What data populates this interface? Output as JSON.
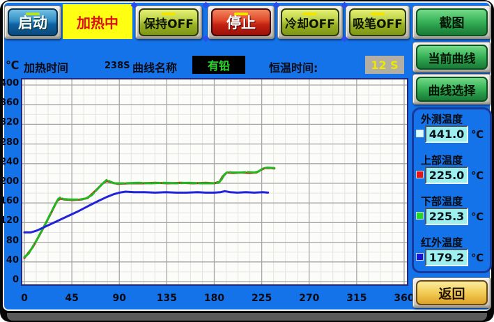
{
  "top_bar": {
    "buttons": [
      {
        "label": "启动",
        "style": "blue",
        "led": "#b4e422"
      },
      {
        "label": "加热中",
        "style": "yellow-status"
      },
      {
        "label": "保持OFF",
        "style": "olive",
        "led": "#f2e600"
      },
      {
        "label": "停止",
        "style": "red",
        "led": "#f2e600"
      },
      {
        "label": "冷却OFF",
        "style": "olive",
        "led": "#f2e600"
      },
      {
        "label": "吸笔OFF",
        "style": "olive",
        "led": "#f2e600"
      },
      {
        "label": "截图",
        "style": "green"
      }
    ]
  },
  "header": {
    "y_axis_unit": "℃",
    "heat_time_label": "加热时间",
    "heat_time_value": "238S",
    "curve_name_label": "曲线名称",
    "curve_name_value": "有铅",
    "hold_time_label": "恒温时间:",
    "hold_time_value": "12 S"
  },
  "right_panel": {
    "screenshot_button": "截图",
    "current_curve_button": "当前曲线",
    "curve_select_button": "曲线选择",
    "back_button": "返回",
    "sensors": [
      {
        "label": "外测温度",
        "value": "441.0",
        "unit": "℃",
        "color": "#d8ffff"
      },
      {
        "label": "上部温度",
        "value": "225.0",
        "unit": "℃",
        "color": "#e81414"
      },
      {
        "label": "下部温度",
        "value": "225.3",
        "unit": "℃",
        "color": "#22d822"
      },
      {
        "label": "红外温度",
        "value": "179.2",
        "unit": "℃",
        "color": "#1414d8"
      }
    ]
  },
  "colors": {
    "screen_bg": "#1473e8",
    "plot_bg": "#fcfcf8",
    "grid_minor": "#e4e4e4",
    "grid_major": "#a6a6a6",
    "status_yellow": "#ffff12",
    "status_text_red": "#e01010"
  },
  "chart_data": {
    "type": "line",
    "x_unit": "s",
    "y_unit": "℃",
    "xlim": [
      0,
      360
    ],
    "ylim": [
      0,
      400
    ],
    "x_ticks": [
      0,
      45,
      90,
      135,
      180,
      225,
      270,
      315,
      360
    ],
    "y_ticks": [
      400,
      360,
      320,
      280,
      240,
      200,
      160,
      120,
      80,
      40,
      0
    ],
    "x_minor_step": 11.25,
    "y_minor_step": 20,
    "grid": true,
    "series": [
      {
        "name": "upper-temp",
        "color": "#b43220",
        "width": 3,
        "points": [
          [
            0,
            48
          ],
          [
            8,
            70
          ],
          [
            16,
            101
          ],
          [
            24,
            134
          ],
          [
            31,
            164
          ],
          [
            34,
            169
          ],
          [
            38,
            167
          ],
          [
            46,
            166
          ],
          [
            54,
            167
          ],
          [
            60,
            170
          ],
          [
            67,
            184
          ],
          [
            74,
            199
          ],
          [
            78,
            205
          ],
          [
            82,
            202
          ],
          [
            88,
            199
          ],
          [
            100,
            200
          ],
          [
            112,
            200
          ],
          [
            124,
            201
          ],
          [
            136,
            200
          ],
          [
            148,
            201
          ],
          [
            160,
            200
          ],
          [
            172,
            201
          ],
          [
            180,
            200
          ],
          [
            185,
            203
          ],
          [
            188,
            214
          ],
          [
            192,
            222
          ],
          [
            198,
            221
          ],
          [
            206,
            222
          ],
          [
            214,
            221
          ],
          [
            220,
            222
          ],
          [
            224,
            227
          ],
          [
            228,
            231
          ],
          [
            234,
            231
          ],
          [
            237,
            230
          ]
        ]
      },
      {
        "name": "lower-temp",
        "color": "#22b822",
        "width": 3,
        "dash": "22 4",
        "points": [
          [
            0,
            50
          ],
          [
            4,
            57
          ],
          [
            12,
            86
          ],
          [
            20,
            118
          ],
          [
            28,
            152
          ],
          [
            32,
            168
          ],
          [
            34,
            171
          ],
          [
            37,
            168
          ],
          [
            44,
            167
          ],
          [
            52,
            167
          ],
          [
            58,
            169
          ],
          [
            64,
            176
          ],
          [
            70,
            190
          ],
          [
            75,
            201
          ],
          [
            78,
            207
          ],
          [
            81,
            204
          ],
          [
            85,
            200
          ],
          [
            95,
            200
          ],
          [
            108,
            201
          ],
          [
            120,
            200
          ],
          [
            132,
            201
          ],
          [
            144,
            200
          ],
          [
            156,
            201
          ],
          [
            168,
            200
          ],
          [
            178,
            200
          ],
          [
            184,
            201
          ],
          [
            187,
            208
          ],
          [
            190,
            219
          ],
          [
            193,
            223
          ],
          [
            198,
            222
          ],
          [
            205,
            222
          ],
          [
            212,
            223
          ],
          [
            218,
            222
          ],
          [
            222,
            224
          ],
          [
            226,
            230
          ],
          [
            230,
            232
          ],
          [
            237,
            231
          ]
        ]
      },
      {
        "name": "infrared-temp",
        "color": "#2222d8",
        "width": 3,
        "points": [
          [
            0,
            100
          ],
          [
            6,
            100
          ],
          [
            12,
            104
          ],
          [
            20,
            112
          ],
          [
            30,
            122
          ],
          [
            40,
            132
          ],
          [
            50,
            142
          ],
          [
            60,
            153
          ],
          [
            70,
            164
          ],
          [
            78,
            172
          ],
          [
            85,
            178
          ],
          [
            90,
            181
          ],
          [
            96,
            183
          ],
          [
            104,
            182
          ],
          [
            114,
            182
          ],
          [
            124,
            181
          ],
          [
            134,
            182
          ],
          [
            144,
            181
          ],
          [
            154,
            181
          ],
          [
            164,
            182
          ],
          [
            172,
            181
          ],
          [
            180,
            181
          ],
          [
            186,
            182
          ],
          [
            190,
            184
          ],
          [
            195,
            182
          ],
          [
            202,
            181
          ],
          [
            210,
            182
          ],
          [
            218,
            181
          ],
          [
            226,
            182
          ],
          [
            231,
            181
          ]
        ]
      }
    ]
  }
}
